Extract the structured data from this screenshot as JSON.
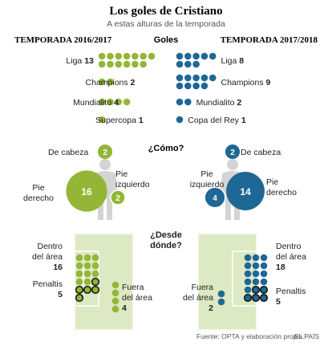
{
  "header": {
    "title": "Los goles de Cristiano",
    "subtitle": "A estas alturas de la temporada"
  },
  "seasons": {
    "left": "TEMPORADA 2016/2017",
    "right": "TEMPORADA 2017/2018"
  },
  "colors": {
    "green": "#93b637",
    "blue": "#1f6795",
    "field": "#dde9c2",
    "fieldLine": "#ffffff",
    "ink": "#222222",
    "silhouette": "#d4d4d4"
  },
  "footer": {
    "source": "Fuente: OPTA y elaboración propia.",
    "brand": "EL PAÍS"
  },
  "chart_data": [
    {
      "type": "bar",
      "title": "Goles",
      "categories_left": [
        "Liga",
        "Champions",
        "Mundialito",
        "Supercopa"
      ],
      "values_left": [
        13,
        2,
        4,
        1
      ],
      "categories_right": [
        "Liga",
        "Champions",
        "Mundialito",
        "Copa del Rey"
      ],
      "values_right": [
        8,
        9,
        2,
        1
      ]
    },
    {
      "type": "pie",
      "title": "¿Cómo?",
      "left": {
        "De cabeza": 2,
        "Pie derecho": 16,
        "Pie izquierdo": 2
      },
      "right": {
        "De cabeza": 2,
        "Pie izquierdo": 4,
        "Pie derecho": 14
      },
      "labels": {
        "head": "De cabeza",
        "right": "Pie derecho",
        "left": "Pie izquierdo"
      }
    },
    {
      "type": "scatter",
      "title": "¿Desde dónde?",
      "left": {
        "Dentro del área": 16,
        "Penaltis": 5,
        "Fuera del área": 4
      },
      "right": {
        "Dentro del área": 18,
        "Penaltis": 5,
        "Fuera del área": 2
      },
      "labels": {
        "inside": "Dentro del área",
        "penalties": "Penaltis",
        "outside": "Fuera del área"
      }
    }
  ]
}
